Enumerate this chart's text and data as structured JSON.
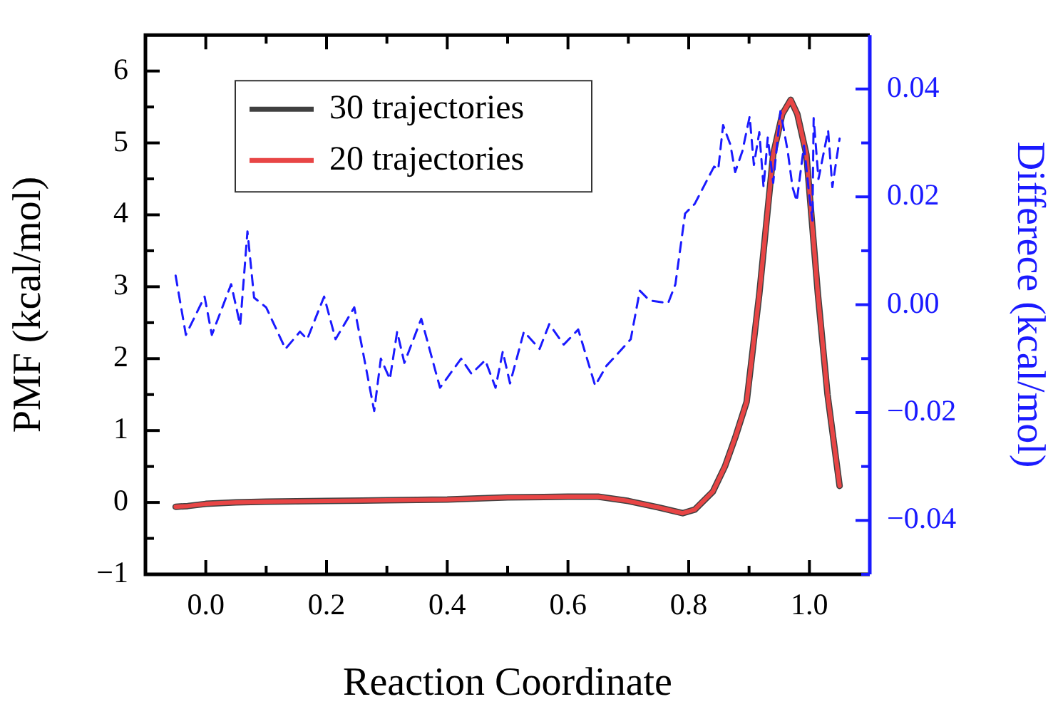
{
  "chart_data": {
    "type": "line",
    "xlabel": "Reaction Coordinate",
    "ylabel": "PMF (kcal/mol)",
    "y2label": "Differece (kcal/mol)",
    "xlim": [
      -0.1,
      1.1
    ],
    "xticks": [
      {
        "value": -0.1,
        "label": null
      },
      {
        "value": 0,
        "label": "0.0"
      },
      {
        "value": 0.1,
        "label": null
      },
      {
        "value": 0.2,
        "label": "0.2"
      },
      {
        "value": 0.3,
        "label": null
      },
      {
        "value": 0.4,
        "label": "0.4"
      },
      {
        "value": 0.5,
        "label": null
      },
      {
        "value": 0.6,
        "label": "0.6"
      },
      {
        "value": 0.7,
        "label": null
      },
      {
        "value": 0.8,
        "label": "0.8"
      },
      {
        "value": 0.9,
        "label": null
      },
      {
        "value": 1,
        "label": "1.0"
      }
    ],
    "ylim": [
      -1,
      6.5
    ],
    "yticks": [
      {
        "value": -1,
        "label": "−1"
      },
      {
        "value": -0.5,
        "label": null
      },
      0,
      {
        "value": 0.5,
        "label": null
      },
      1,
      {
        "value": 1.5,
        "label": null
      },
      2,
      {
        "value": 2.5,
        "label": null
      },
      3,
      {
        "value": 3.5,
        "label": null
      },
      4,
      {
        "value": 4.5,
        "label": null
      },
      5,
      {
        "value": 5.5,
        "label": null
      },
      6
    ],
    "y2lim": [
      -0.05,
      0.05
    ],
    "y2ticks": [
      {
        "value": -0.05,
        "label": null
      },
      {
        "value": -0.04,
        "label": "−0.04"
      },
      {
        "value": -0.03,
        "label": null
      },
      {
        "value": -0.02,
        "label": "−0.02"
      },
      {
        "value": -0.01,
        "label": null
      },
      {
        "value": 0,
        "label": "0.00"
      },
      {
        "value": 0.01,
        "label": null
      },
      {
        "value": 0.02,
        "label": "0.02"
      },
      {
        "value": 0.03,
        "label": null
      },
      {
        "value": 0.04,
        "label": "0.04"
      }
    ],
    "grid": false,
    "legend": "top left",
    "marker": "none",
    "series": [
      {
        "name": "30 trajectories",
        "color": "#404040",
        "line_style": "solid",
        "x": [
          -0.05,
          -0.03,
          0.0,
          0.05,
          0.1,
          0.2,
          0.3,
          0.4,
          0.5,
          0.6,
          0.65,
          0.7,
          0.75,
          0.79,
          0.81,
          0.84,
          0.86,
          0.877,
          0.896,
          0.917,
          0.94,
          0.955,
          0.969,
          0.98,
          0.995,
          1.014,
          1.03,
          1.05
        ],
        "values": [
          -0.06,
          -0.05,
          -0.02,
          0.0,
          0.01,
          0.02,
          0.03,
          0.04,
          0.07,
          0.08,
          0.08,
          0.02,
          -0.07,
          -0.15,
          -0.1,
          0.15,
          0.5,
          0.9,
          1.4,
          2.9,
          4.84,
          5.4,
          5.6,
          5.4,
          4.84,
          2.9,
          1.5,
          0.23
        ]
      },
      {
        "name": "20 trajectories",
        "color": "#e84545",
        "line_style": "solid",
        "x": [
          -0.05,
          -0.03,
          0.0,
          0.05,
          0.1,
          0.2,
          0.3,
          0.4,
          0.5,
          0.6,
          0.65,
          0.7,
          0.75,
          0.79,
          0.81,
          0.84,
          0.86,
          0.877,
          0.896,
          0.917,
          0.94,
          0.955,
          0.969,
          0.98,
          0.995,
          1.014,
          1.03,
          1.05
        ],
        "values": [
          -0.06,
          -0.05,
          -0.02,
          0.0,
          0.01,
          0.02,
          0.03,
          0.04,
          0.07,
          0.08,
          0.08,
          0.02,
          -0.07,
          -0.15,
          -0.1,
          0.15,
          0.5,
          0.9,
          1.4,
          2.9,
          4.84,
          5.4,
          5.6,
          5.4,
          4.84,
          2.9,
          1.5,
          0.23
        ]
      },
      {
        "color": "#1a1aff",
        "axis": "y2",
        "line_style": "dashed",
        "x": [
          -0.05,
          -0.033,
          -0.002,
          0.01,
          0.042,
          0.057,
          0.069,
          0.08,
          0.1,
          0.132,
          0.156,
          0.168,
          0.196,
          0.215,
          0.246,
          0.258,
          0.279,
          0.29,
          0.305,
          0.317,
          0.329,
          0.357,
          0.388,
          0.423,
          0.44,
          0.463,
          0.48,
          0.492,
          0.504,
          0.527,
          0.553,
          0.569,
          0.593,
          0.617,
          0.645,
          0.664,
          0.683,
          0.704,
          0.719,
          0.735,
          0.766,
          0.778,
          0.794,
          0.81,
          0.842,
          0.849,
          0.857,
          0.869,
          0.877,
          0.889,
          0.901,
          0.908,
          0.917,
          0.924,
          0.931,
          0.94,
          0.952,
          0.964,
          0.972,
          0.979,
          0.991,
          1.0,
          1.005,
          1.007,
          1.015,
          1.031,
          1.038,
          1.05
        ],
        "values": [
          0.0054,
          -0.0056,
          0.0015,
          -0.0056,
          0.0038,
          -0.0038,
          0.0136,
          0.0013,
          -0.0005,
          -0.0082,
          -0.005,
          -0.0064,
          0.0015,
          -0.0064,
          -0.0005,
          -0.0074,
          -0.0197,
          -0.01,
          -0.0138,
          -0.005,
          -0.0108,
          -0.0026,
          -0.0154,
          -0.01,
          -0.0128,
          -0.0103,
          -0.0154,
          -0.0087,
          -0.0146,
          -0.005,
          -0.0082,
          -0.0036,
          -0.0074,
          -0.0046,
          -0.015,
          -0.0113,
          -0.009,
          -0.0064,
          0.0026,
          0.0008,
          0.0003,
          0.0038,
          0.0169,
          0.0187,
          0.0256,
          0.0251,
          0.0333,
          0.0297,
          0.0246,
          0.0285,
          0.0349,
          0.0259,
          0.032,
          0.0218,
          0.031,
          0.0226,
          0.0359,
          0.0285,
          0.0218,
          0.0192,
          0.0295,
          0.02,
          0.0156,
          0.0346,
          0.0233,
          0.0323,
          0.0218,
          0.0308
        ]
      }
    ]
  }
}
